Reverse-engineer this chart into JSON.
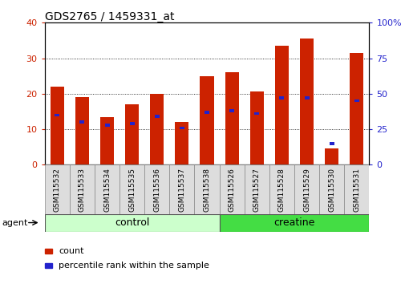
{
  "title": "GDS2765 / 1459331_at",
  "samples": [
    "GSM115532",
    "GSM115533",
    "GSM115534",
    "GSM115535",
    "GSM115536",
    "GSM115537",
    "GSM115538",
    "GSM115526",
    "GSM115527",
    "GSM115528",
    "GSM115529",
    "GSM115530",
    "GSM115531"
  ],
  "counts": [
    22,
    19,
    13.5,
    17,
    20,
    12,
    25,
    26,
    20.7,
    33.5,
    35.5,
    4.5,
    31.5
  ],
  "percentile_ranks": [
    35,
    30,
    28,
    29,
    34,
    26,
    37,
    38,
    36,
    47,
    47,
    15,
    45
  ],
  "bar_color": "#cc2200",
  "blue_color": "#2222cc",
  "control_light": "#ccffcc",
  "creatine_green": "#44dd44",
  "ylim_left": [
    0,
    40
  ],
  "ylim_right": [
    0,
    100
  ],
  "yticks_left": [
    0,
    10,
    20,
    30,
    40
  ],
  "yticks_right": [
    0,
    25,
    50,
    75,
    100
  ],
  "agent_label": "agent",
  "control_label": "control",
  "creatine_label": "creatine",
  "legend_count": "count",
  "legend_pct": "percentile rank within the sample",
  "n_control": 7,
  "n_creatine": 6
}
